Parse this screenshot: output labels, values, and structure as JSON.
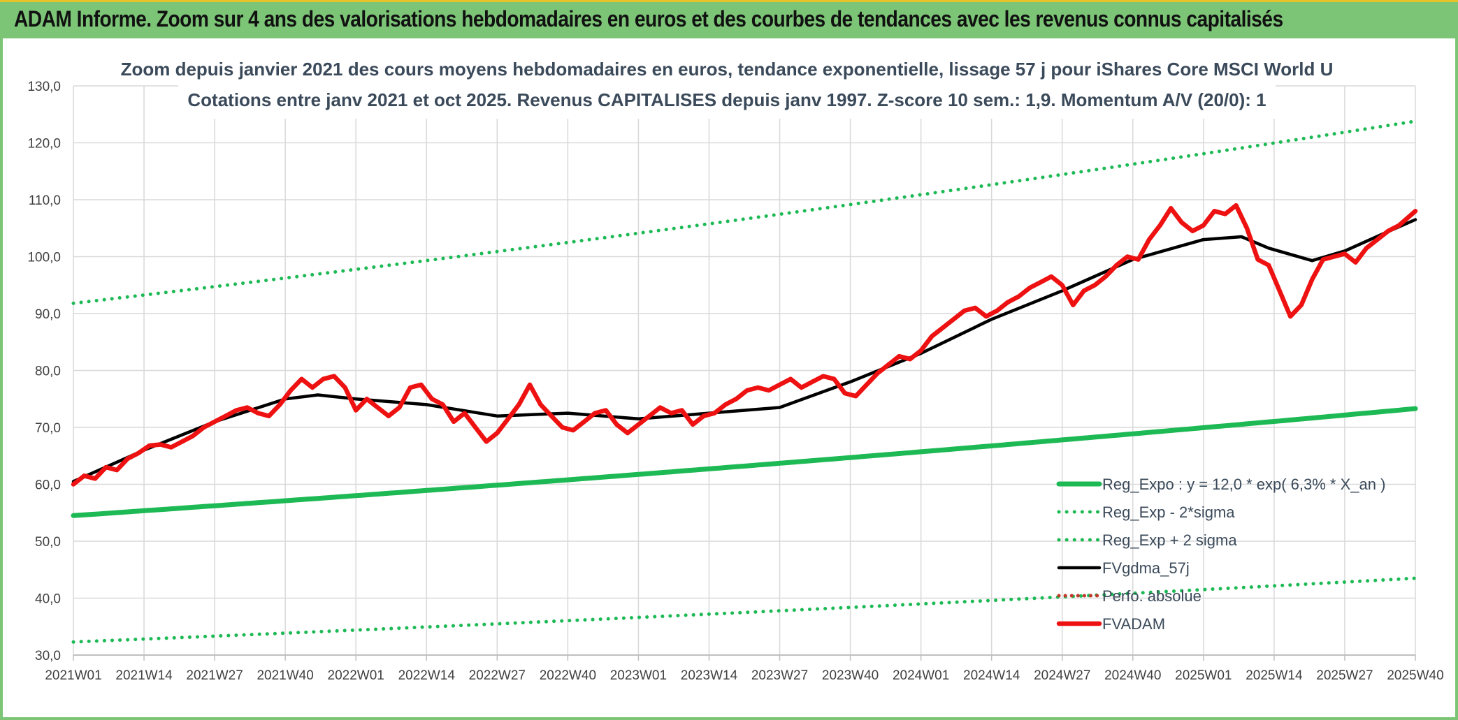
{
  "header": {
    "title": "ADAM Informe. Zoom sur 4 ans des valorisations hebdomadaires en euros et des courbes de tendances avec les revenus connus capitalisés"
  },
  "chart_data": {
    "type": "line",
    "title": "Zoom depuis janvier 2021 des cours moyens hebdomadaires en euros, tendance exponentielle, lissage 57 j pour iShares Core MSCI World U",
    "subtitle": "Cotations entre janv 2021 et oct 2025. Revenus CAPITALISES depuis janv 1997. Z-score 10 sem.: 1,9. Momentum A/V (20/0): 1",
    "xlabel": "",
    "ylabel": "",
    "ylim": [
      30,
      130
    ],
    "y_ticks": [
      "30,0",
      "40,0",
      "50,0",
      "60,0",
      "70,0",
      "80,0",
      "90,0",
      "100,0",
      "110,0",
      "120,0",
      "130,0"
    ],
    "x_ticks": [
      "2021W01",
      "2021W14",
      "2021W27",
      "2021W40",
      "2022W01",
      "2022W14",
      "2022W27",
      "2022W40",
      "2023W01",
      "2023W14",
      "2023W27",
      "2023W40",
      "2024W01",
      "2024W14",
      "2024W27",
      "2024W40",
      "2025W01",
      "2025W14",
      "2025W27",
      "2025W40"
    ],
    "week_range": [
      0,
      247
    ],
    "grid": true,
    "legend_position": "bottom-right",
    "colors": {
      "reg_expo": "#1db954",
      "bands": "#1db954",
      "fvgdma": "#000000",
      "perfo": "#c0392b",
      "fvadam": "#ee1111",
      "grid": "#d9d9d9"
    },
    "series": [
      {
        "name": "Reg_Expo : y = 12,0 * exp( 6,3% *  X_an )",
        "style": "solid",
        "x": [
          0,
          247
        ],
        "values": [
          54.5,
          73.3
        ]
      },
      {
        "name": "Reg_Exp - 2*sigma",
        "style": "dotted",
        "x": [
          0,
          247
        ],
        "values": [
          32.3,
          43.5
        ]
      },
      {
        "name": "Reg_Exp + 2 sigma",
        "style": "dotted",
        "x": [
          0,
          247
        ],
        "values": [
          91.8,
          123.8
        ]
      },
      {
        "name": "FVgdma_57j",
        "style": "solid",
        "x": [
          0,
          13,
          26,
          39,
          45,
          52,
          65,
          78,
          91,
          104,
          117,
          130,
          143,
          156,
          169,
          182,
          195,
          208,
          215,
          220,
          228,
          234,
          241,
          247
        ],
        "values": [
          60.5,
          66.0,
          71.0,
          75.0,
          75.7,
          75.0,
          74.0,
          72.0,
          72.5,
          71.5,
          72.5,
          73.5,
          78.0,
          83.0,
          89.0,
          94.0,
          99.5,
          103.0,
          103.5,
          101.5,
          99.3,
          101.0,
          104.0,
          106.5
        ]
      },
      {
        "name": "Perfo. absolue",
        "style": "dotted",
        "x": [],
        "values": []
      },
      {
        "name": "FVADAM",
        "style": "solid",
        "x": [
          0,
          2,
          4,
          6,
          8,
          10,
          12,
          14,
          16,
          18,
          20,
          22,
          24,
          26,
          28,
          30,
          32,
          34,
          36,
          38,
          40,
          42,
          44,
          46,
          48,
          50,
          52,
          54,
          56,
          58,
          60,
          62,
          64,
          66,
          68,
          70,
          72,
          74,
          76,
          78,
          80,
          82,
          84,
          86,
          88,
          90,
          92,
          94,
          96,
          98,
          100,
          102,
          104,
          106,
          108,
          110,
          112,
          114,
          116,
          118,
          120,
          122,
          124,
          126,
          128,
          130,
          132,
          134,
          136,
          138,
          140,
          142,
          144,
          146,
          148,
          150,
          152,
          154,
          156,
          158,
          160,
          162,
          164,
          166,
          168,
          170,
          172,
          174,
          176,
          178,
          180,
          182,
          184,
          186,
          188,
          190,
          192,
          194,
          196,
          198,
          200,
          202,
          204,
          206,
          208,
          210,
          212,
          214,
          216,
          218,
          220,
          222,
          224,
          226,
          228,
          230,
          232,
          234,
          236,
          238,
          240,
          242,
          244,
          247
        ],
        "values": [
          60.0,
          61.5,
          61.0,
          63.0,
          62.5,
          64.5,
          65.5,
          66.8,
          67.0,
          66.5,
          67.5,
          68.5,
          70.0,
          71.0,
          72.0,
          73.0,
          73.5,
          72.5,
          72.0,
          74.0,
          76.5,
          78.5,
          77.0,
          78.5,
          79.0,
          77.0,
          73.0,
          75.0,
          73.5,
          72.0,
          73.5,
          77.0,
          77.5,
          75.0,
          74.0,
          71.0,
          72.5,
          70.0,
          67.5,
          69.0,
          71.5,
          74.0,
          77.5,
          74.0,
          72.0,
          70.0,
          69.5,
          71.0,
          72.5,
          73.0,
          70.5,
          69.0,
          70.5,
          72.0,
          73.5,
          72.5,
          73.0,
          70.5,
          72.0,
          72.5,
          74.0,
          75.0,
          76.5,
          77.0,
          76.5,
          77.5,
          78.5,
          77.0,
          78.0,
          79.0,
          78.5,
          76.0,
          75.5,
          77.5,
          79.5,
          81.0,
          82.5,
          82.0,
          83.5,
          86.0,
          87.5,
          89.0,
          90.5,
          91.0,
          89.5,
          90.5,
          92.0,
          93.0,
          94.5,
          95.5,
          96.5,
          95.0,
          91.5,
          94.0,
          95.0,
          96.5,
          98.5,
          100.0,
          99.5,
          103.0,
          105.5,
          108.5,
          106.0,
          104.5,
          105.5,
          108.0,
          107.5,
          109.0,
          105.0,
          99.5,
          98.5,
          94.0,
          89.5,
          91.5,
          96.0,
          99.5,
          100.0,
          100.5,
          99.0,
          101.5,
          103.0,
          104.5,
          105.5,
          108.0
        ]
      }
    ]
  }
}
